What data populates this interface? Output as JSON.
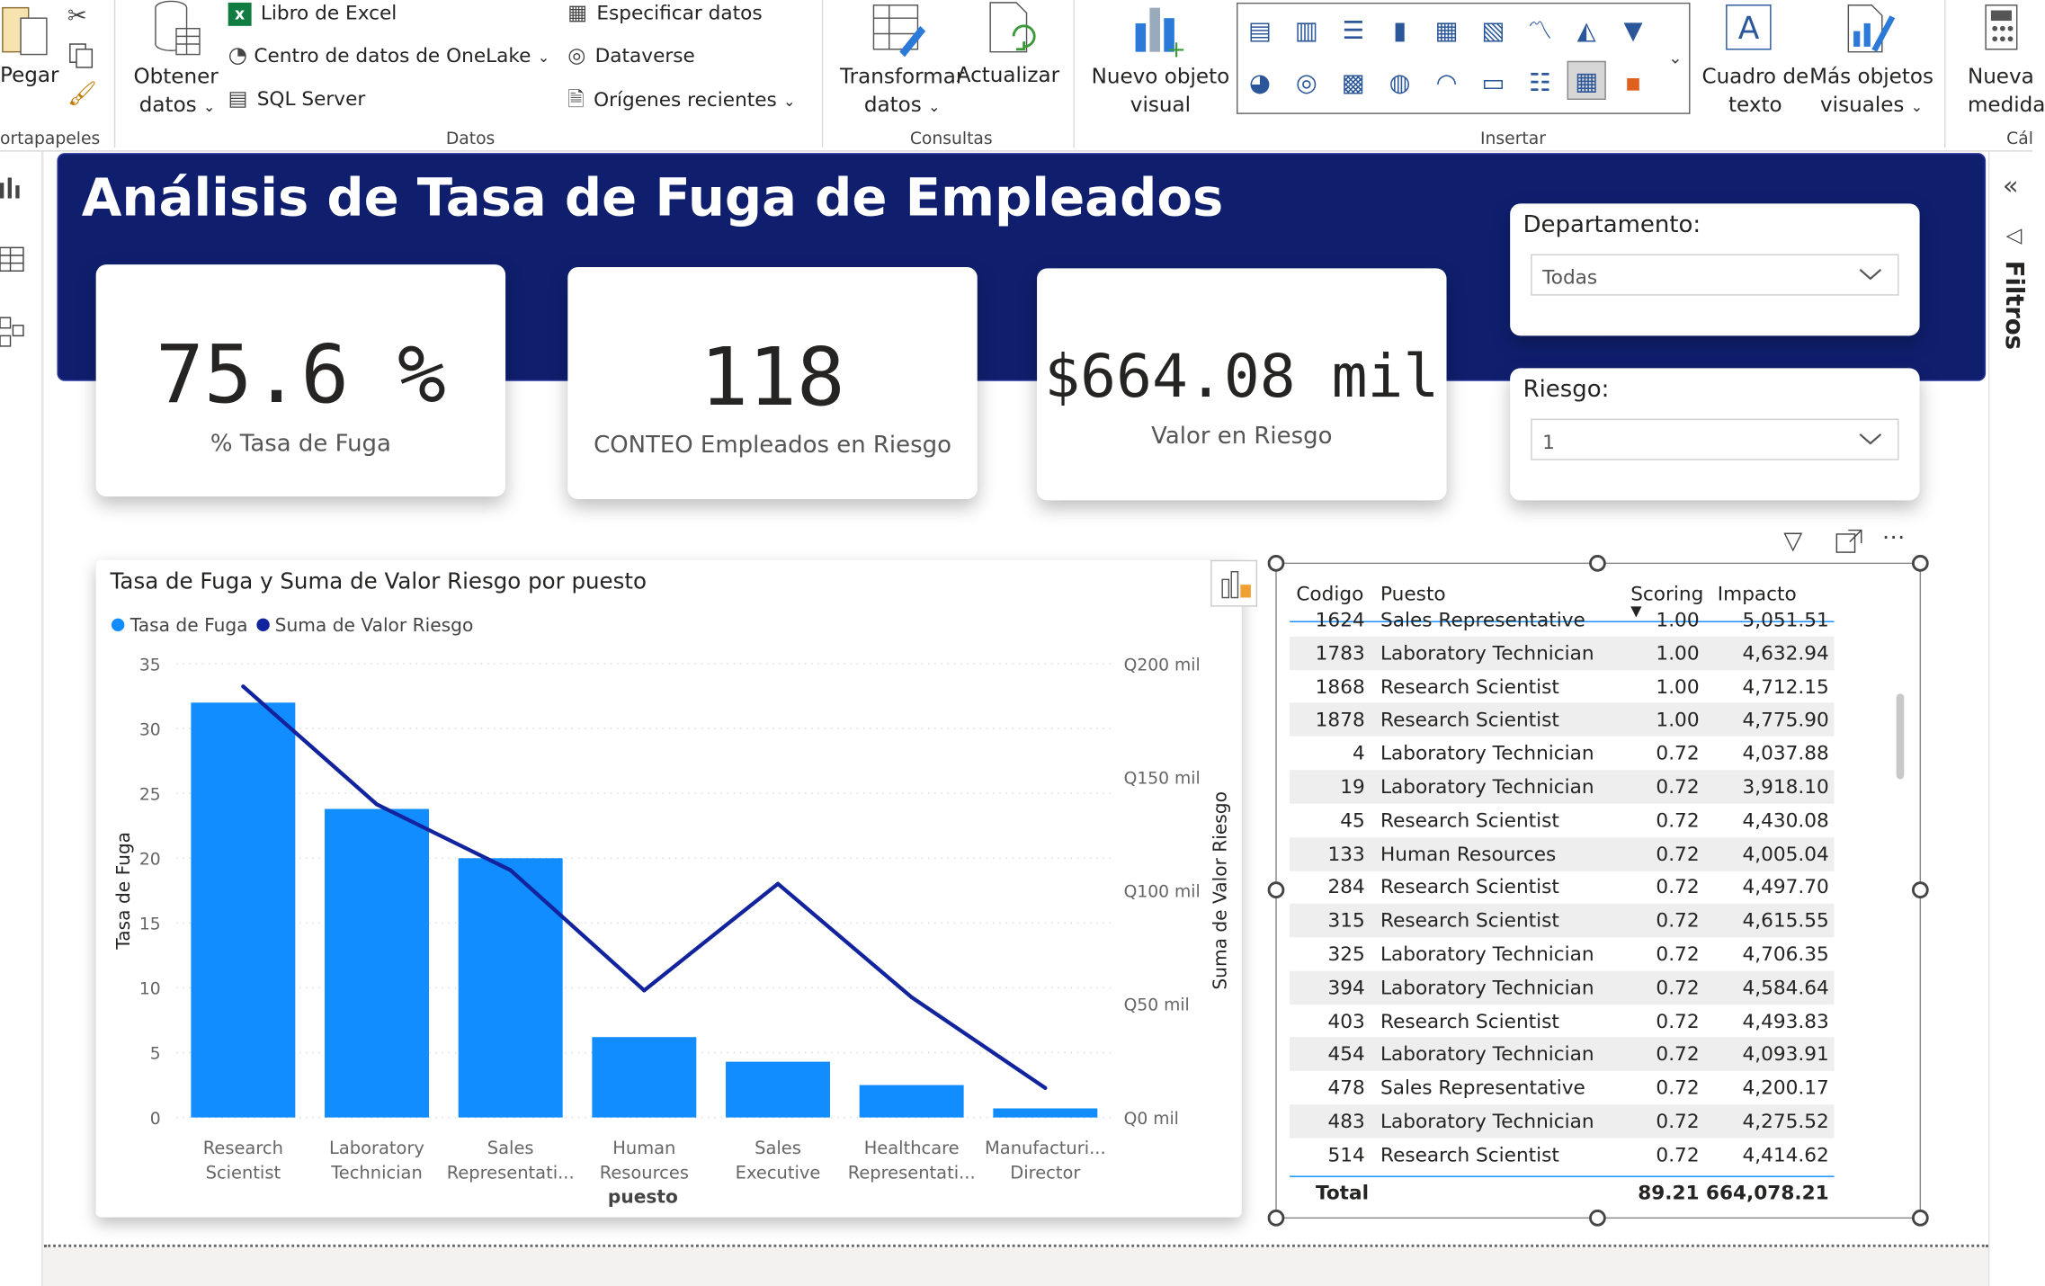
{
  "ribbon": {
    "paste": "Pegar",
    "clipboard_group": "ortapapeles",
    "get_data_1": "Obtener",
    "get_data_2": "datos",
    "excel": "Libro de Excel",
    "onelake": "Centro de datos de OneLake",
    "sql": "SQL Server",
    "enter_data": "Especificar datos",
    "dataverse": "Dataverse",
    "recent": "Orígenes recientes",
    "data_group": "Datos",
    "transform_1": "Transformar",
    "transform_2": "datos",
    "refresh": "Actualizar",
    "queries_group": "Consultas",
    "new_visual_1": "Nuevo objeto",
    "new_visual_2": "visual",
    "textbox_1": "Cuadro de",
    "textbox_2": "texto",
    "more_visuals_1": "Más objetos",
    "more_visuals_2": "visuales",
    "insert_group": "Insertar",
    "new_measure_1": "Nueva",
    "new_measure_2": "medida",
    "calc_group": "Cál"
  },
  "filters_pane": "Filtros",
  "dashboard": {
    "title": "Análisis de Tasa de Fuga de Empleados",
    "kpis": [
      {
        "value": "75.6 %",
        "label": "% Tasa de Fuga"
      },
      {
        "value": "118",
        "label": "CONTEO Empleados en Riesgo"
      },
      {
        "value": "$664.08 mil",
        "label": "Valor en Riesgo"
      }
    ],
    "slicers": [
      {
        "label": "Departamento:",
        "value": "Todas"
      },
      {
        "label": "Riesgo:",
        "value": "1"
      }
    ]
  },
  "chart_data": {
    "type": "bar",
    "title": "Tasa de Fuga y Suma de Valor Riesgo por puesto",
    "categories": [
      "Research Scientist",
      "Laboratory Technician",
      "Sales Representati...",
      "Human Resources",
      "Sales Executive",
      "Healthcare Representati...",
      "Manufacturi... Director"
    ],
    "category_lines": [
      [
        "Research",
        "Scientist"
      ],
      [
        "Laboratory",
        "Technician"
      ],
      [
        "Sales",
        "Representati..."
      ],
      [
        "Human",
        "Resources"
      ],
      [
        "Sales",
        "Executive"
      ],
      [
        "Healthcare",
        "Representati..."
      ],
      [
        "Manufacturi...",
        "Director"
      ]
    ],
    "series": [
      {
        "name": "Tasa de Fuga",
        "type": "bar",
        "axis": "left",
        "color": "#118dff",
        "values": [
          32,
          23.8,
          20,
          6.2,
          4.3,
          2.5,
          0.7
        ]
      },
      {
        "name": "Suma de Valor Riesgo",
        "type": "line",
        "axis": "right",
        "color": "#12239e",
        "values": [
          190000,
          138000,
          109000,
          56000,
          103000,
          53000,
          13000
        ]
      }
    ],
    "xlabel": "puesto",
    "ylabel": "Tasa de Fuga",
    "y2label": "Suma de Valor Riesgo",
    "ylim": [
      0,
      35
    ],
    "yticks": [
      0,
      5,
      10,
      15,
      20,
      25,
      30,
      35
    ],
    "y2lim": [
      0,
      200000
    ],
    "y2ticks": [
      "Q0 mil",
      "Q50 mil",
      "Q100 mil",
      "Q150 mil",
      "Q200 mil"
    ],
    "legend": "top-left",
    "grid": true
  },
  "table": {
    "headers": [
      "Codigo",
      "Puesto",
      "Scoring",
      "Impacto"
    ],
    "partial_row": {
      "codigo": "1624",
      "puesto": "Sales Representative",
      "scoring": "1.00",
      "impacto": "5,051.51"
    },
    "rows": [
      {
        "codigo": "1783",
        "puesto": "Laboratory Technician",
        "scoring": "1.00",
        "impacto": "4,632.94"
      },
      {
        "codigo": "1868",
        "puesto": "Research Scientist",
        "scoring": "1.00",
        "impacto": "4,712.15"
      },
      {
        "codigo": "1878",
        "puesto": "Research Scientist",
        "scoring": "1.00",
        "impacto": "4,775.90"
      },
      {
        "codigo": "4",
        "puesto": "Laboratory Technician",
        "scoring": "0.72",
        "impacto": "4,037.88"
      },
      {
        "codigo": "19",
        "puesto": "Laboratory Technician",
        "scoring": "0.72",
        "impacto": "3,918.10"
      },
      {
        "codigo": "45",
        "puesto": "Research Scientist",
        "scoring": "0.72",
        "impacto": "4,430.08"
      },
      {
        "codigo": "133",
        "puesto": "Human Resources",
        "scoring": "0.72",
        "impacto": "4,005.04"
      },
      {
        "codigo": "284",
        "puesto": "Research Scientist",
        "scoring": "0.72",
        "impacto": "4,497.70"
      },
      {
        "codigo": "315",
        "puesto": "Research Scientist",
        "scoring": "0.72",
        "impacto": "4,615.55"
      },
      {
        "codigo": "325",
        "puesto": "Laboratory Technician",
        "scoring": "0.72",
        "impacto": "4,706.35"
      },
      {
        "codigo": "394",
        "puesto": "Laboratory Technician",
        "scoring": "0.72",
        "impacto": "4,584.64"
      },
      {
        "codigo": "403",
        "puesto": "Research Scientist",
        "scoring": "0.72",
        "impacto": "4,493.83"
      },
      {
        "codigo": "454",
        "puesto": "Laboratory Technician",
        "scoring": "0.72",
        "impacto": "4,093.91"
      },
      {
        "codigo": "478",
        "puesto": "Sales Representative",
        "scoring": "0.72",
        "impacto": "4,200.17"
      },
      {
        "codigo": "483",
        "puesto": "Laboratory Technician",
        "scoring": "0.72",
        "impacto": "4,275.52"
      },
      {
        "codigo": "514",
        "puesto": "Research Scientist",
        "scoring": "0.72",
        "impacto": "4,414.62"
      }
    ],
    "total": {
      "label": "Total",
      "scoring": "89.21",
      "impacto": "664,078.21"
    }
  }
}
